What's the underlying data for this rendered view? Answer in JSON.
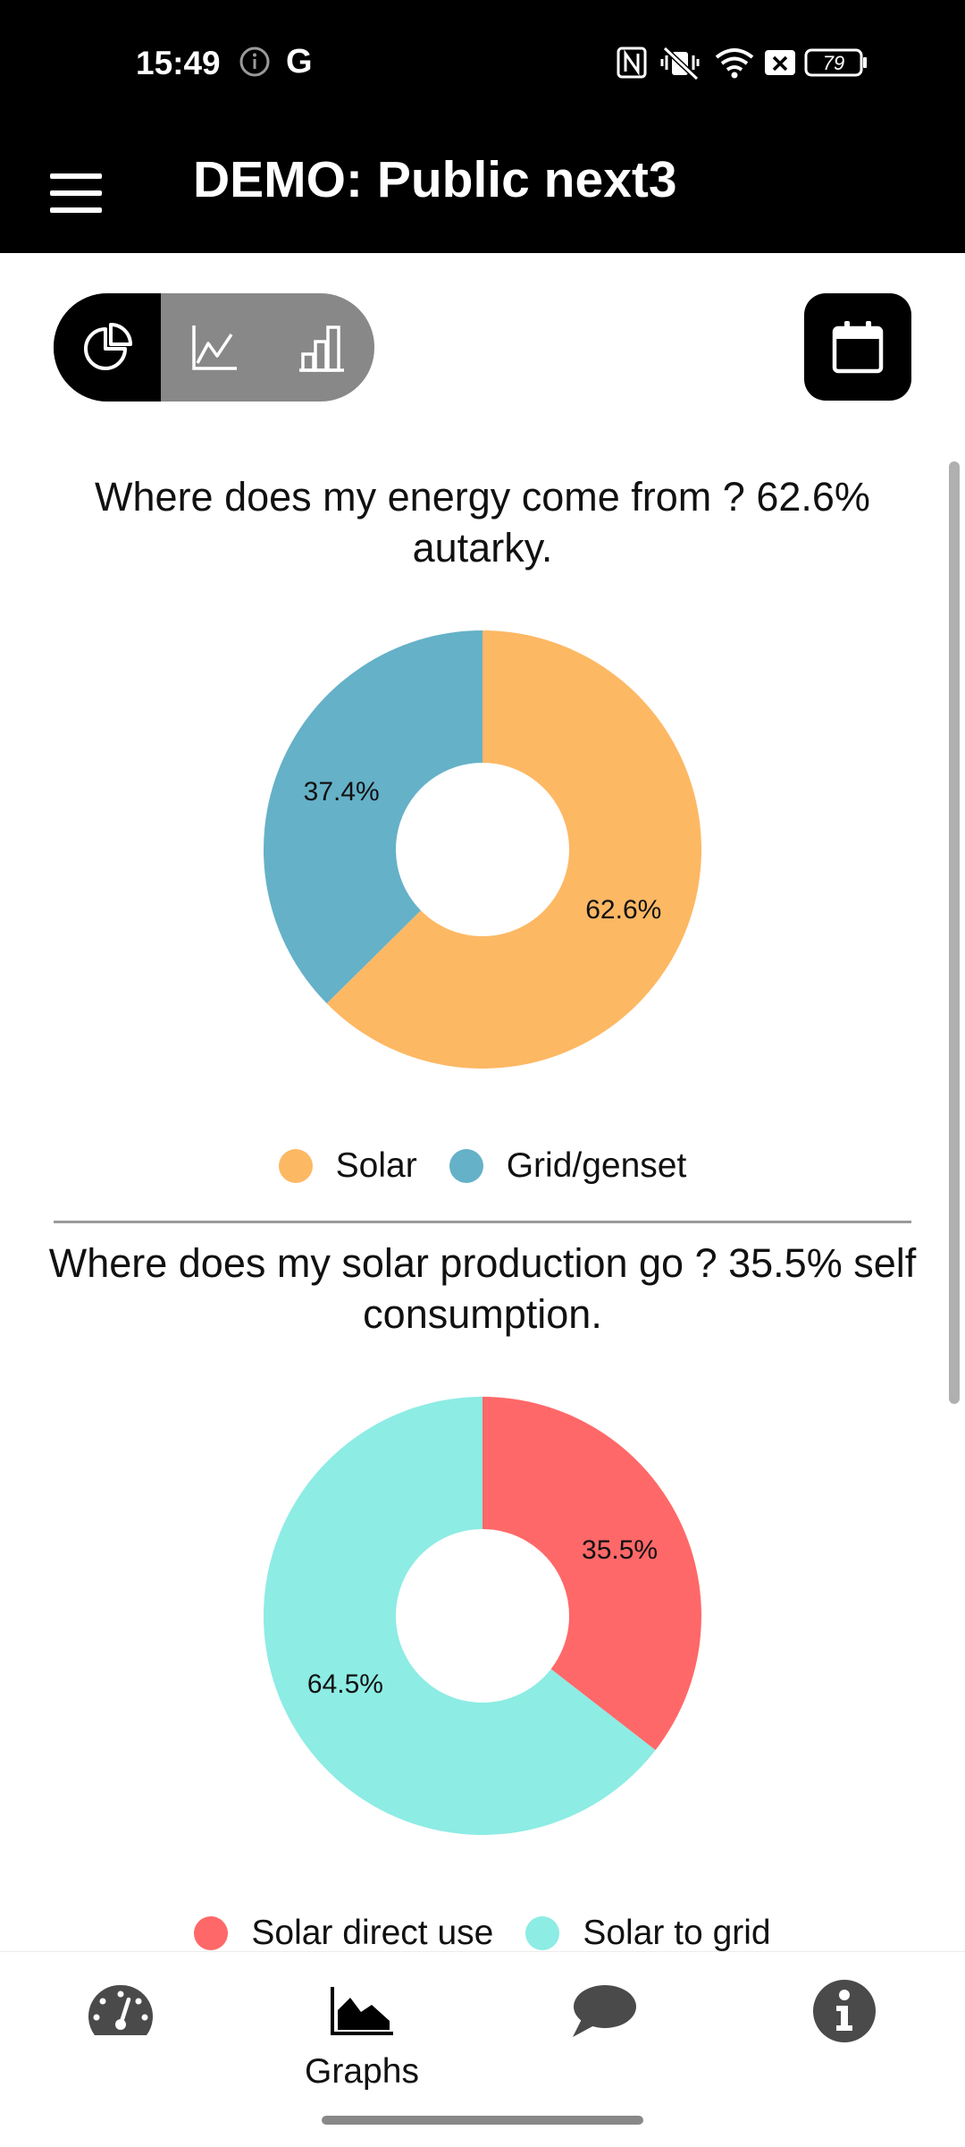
{
  "status_bar": {
    "time": "15:49",
    "google_glyph": "G",
    "battery": "79",
    "icons": [
      "info-icon",
      "nfc-icon",
      "vibrate-icon",
      "wifi-icon",
      "no-sim-icon",
      "battery-icon"
    ]
  },
  "app_bar": {
    "title": "DEMO: Public next3",
    "menu_icon": "hamburger-menu-icon"
  },
  "view_toggle": {
    "options": [
      {
        "name": "pie-chart-icon",
        "active": true
      },
      {
        "name": "line-chart-icon",
        "active": false
      },
      {
        "name": "bar-chart-icon",
        "active": false
      }
    ]
  },
  "calendar_button": {
    "icon": "calendar-icon"
  },
  "chart_data": [
    {
      "type": "pie",
      "title": "Where does my energy come from ? 62.6% autarky.",
      "donut": true,
      "labels": [
        "Solar",
        "Grid/genset"
      ],
      "values": [
        62.6,
        37.4
      ],
      "value_labels": [
        "62.6%",
        "37.4%"
      ],
      "colors": [
        "#fdb864",
        "#65b1c8"
      ],
      "legend": "bottom"
    },
    {
      "type": "pie",
      "title": "Where does my solar production go ? 35.5% self consumption.",
      "donut": true,
      "labels": [
        "Solar direct use",
        "Solar to grid"
      ],
      "values": [
        35.5,
        64.5
      ],
      "value_labels": [
        "35.5%",
        "64.5%"
      ],
      "colors": [
        "#ff6868",
        "#8dece4"
      ],
      "legend": "bottom"
    }
  ],
  "bottom_nav": {
    "items": [
      {
        "icon": "dashboard-gauge-icon",
        "label": ""
      },
      {
        "icon": "graphs-area-chart-icon",
        "label": "Graphs"
      },
      {
        "icon": "chat-bubble-icon",
        "label": ""
      },
      {
        "icon": "info-circle-icon",
        "label": ""
      }
    ]
  }
}
